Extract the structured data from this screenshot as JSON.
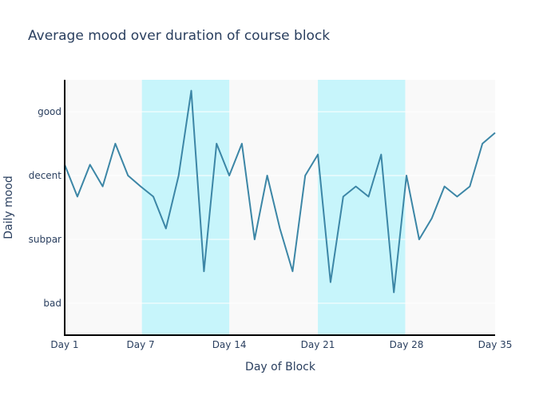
{
  "chart_data": {
    "type": "line",
    "title": "Average mood over duration of course block",
    "xlabel": "Day of Block",
    "ylabel": "Daily mood",
    "x_ticks": [
      {
        "value": 1,
        "label": "Day 1"
      },
      {
        "value": 7,
        "label": "Day 7"
      },
      {
        "value": 14,
        "label": "Day 14"
      },
      {
        "value": 21,
        "label": "Day 21"
      },
      {
        "value": 28,
        "label": "Day 28"
      },
      {
        "value": 35,
        "label": "Day 35"
      }
    ],
    "y_ticks": [
      {
        "value": 1,
        "label": "bad"
      },
      {
        "value": 2,
        "label": "subpar"
      },
      {
        "value": 3,
        "label": "decent"
      },
      {
        "value": 4,
        "label": "good"
      }
    ],
    "xlim": [
      1,
      35
    ],
    "ylim": [
      0.5,
      4.5
    ],
    "grid": true,
    "shaded_x_ranges": [
      [
        7.1,
        14
      ],
      [
        21,
        27.9
      ]
    ],
    "x": [
      1,
      2,
      3,
      4,
      5,
      6,
      7,
      8,
      9,
      10,
      11,
      12,
      13,
      14,
      15,
      16,
      17,
      18,
      19,
      20,
      21,
      22,
      23,
      24,
      25,
      26,
      27,
      28,
      29,
      30,
      31,
      32,
      33,
      34,
      35
    ],
    "series": [
      {
        "values": [
          3.17,
          2.67,
          3.17,
          2.83,
          3.5,
          3.0,
          2.83,
          2.67,
          2.17,
          3.0,
          4.33,
          1.5,
          3.5,
          3.0,
          3.5,
          2.0,
          3.0,
          2.17,
          1.5,
          3.0,
          3.33,
          1.33,
          2.67,
          2.83,
          2.67,
          3.33,
          1.17,
          3.0,
          2.0,
          2.33,
          2.83,
          2.67,
          2.83,
          3.5,
          3.67
        ]
      }
    ],
    "colors": {
      "line": "#3c86a6",
      "plot_bg": "#f9f9f9",
      "shade": "#c7f5fb",
      "grid": "#ffffff",
      "axis": "#000000"
    }
  }
}
